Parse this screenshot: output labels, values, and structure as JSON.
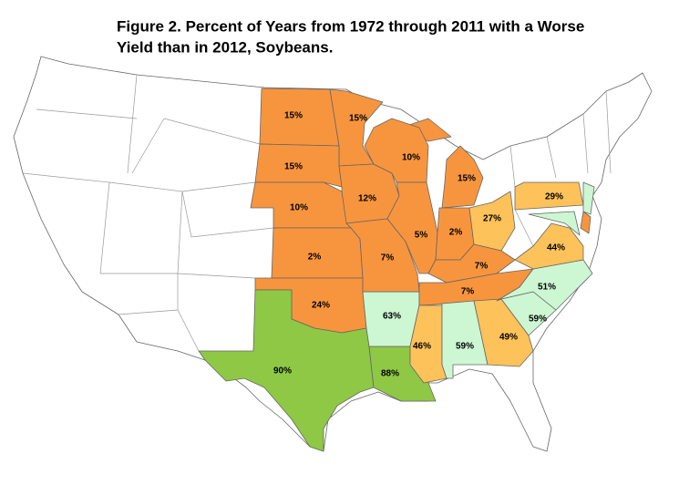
{
  "title": [
    "Figure 2. Percent of Years from 1972 through 2011 with a Worse",
    "Yield than in 2012, Soybeans."
  ],
  "regions": [
    {
      "label": "15%",
      "color": "#f7953e"
    },
    {
      "label": "15%",
      "color": "#f7953e"
    },
    {
      "label": "15%",
      "color": "#f7953e"
    },
    {
      "label": "10%",
      "color": "#f7953e"
    },
    {
      "label": "2%",
      "color": "#f7953e"
    },
    {
      "label": "24%",
      "color": "#f7953e"
    },
    {
      "label": "90%",
      "color": "#8fc845"
    },
    {
      "label": "88%",
      "color": "#8fc845"
    },
    {
      "label": "63%",
      "color": "#ccf7d2"
    },
    {
      "label": "12%",
      "color": "#f7953e"
    },
    {
      "label": "7%",
      "color": "#f7953e"
    },
    {
      "label": "10%",
      "color": "#f7953e"
    },
    {
      "label": "5%",
      "color": "#f7953e"
    },
    {
      "label": "15%",
      "color": "#f7953e"
    },
    {
      "label": "2%",
      "color": "#f7953e"
    },
    {
      "label": "27%",
      "color": "#fdc25a"
    },
    {
      "label": "7%",
      "color": "#f7953e"
    },
    {
      "label": "7%",
      "color": "#f7953e"
    },
    {
      "label": "46%",
      "color": "#fdc25a"
    },
    {
      "label": "59%",
      "color": "#ccf7d2"
    },
    {
      "label": "49%",
      "color": "#fdc25a"
    },
    {
      "label": "59%",
      "color": "#ccf7d2"
    },
    {
      "label": "51%",
      "color": "#ccf7d2"
    },
    {
      "label": "44%",
      "color": "#fdc25a"
    },
    {
      "label": "29%",
      "color": "#fdc25a"
    },
    {
      "color": "#ccf7d2"
    },
    {
      "color": "#ccf7d2"
    },
    {
      "color": "#f7953e"
    }
  ]
}
